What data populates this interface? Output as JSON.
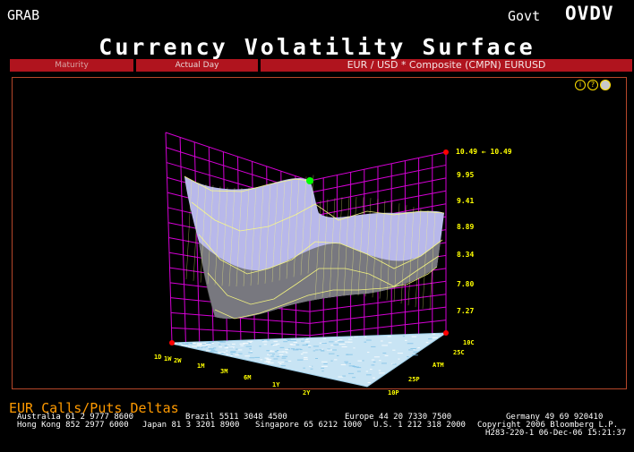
{
  "header": {
    "left_label": "GRAB",
    "market_label": "Govt",
    "function_code": "OVDV",
    "title": "Currency Volatility Surface"
  },
  "tabs": [
    {
      "label": "Maturity"
    },
    {
      "label": "Actual Day"
    },
    {
      "label": "EUR / USD  * Composite (CMPN) EURUSD"
    }
  ],
  "toolbar_icons": [
    "info-icon",
    "help-icon",
    "settings-icon"
  ],
  "chart_data": {
    "type": "surface",
    "z_axis": {
      "tick_labels": [
        "7.27",
        "7.80",
        "8.34",
        "8.89",
        "9.41",
        "9.95",
        "10.49"
      ],
      "max_marker_label": "10.49 ← 10.49"
    },
    "maturity_axis": {
      "tick_labels": [
        "1D",
        "1W",
        "2W",
        "1M",
        "3M",
        "6M",
        "1Y",
        "2Y"
      ]
    },
    "delta_axis": {
      "tick_labels": [
        "10P",
        "25P",
        "ATM",
        "25C",
        "10C"
      ]
    },
    "colors": {
      "grid": "#d400d4",
      "surface_light": "#b8b8ea",
      "surface_shade": "#6c6c6c",
      "mesh_lines": "#ffff80",
      "floor": "#c8e4f4",
      "axis_labels": "#ffff00",
      "marker_red": "#ff0000",
      "marker_green": "#00ff00"
    }
  },
  "footer": {
    "title": "EUR  Calls/Puts Deltas",
    "contacts_line1": [
      "Australia 61 2 9777 8600",
      "Brazil 5511 3048 4500",
      "Europe 44 20 7330 7500",
      "Germany 49 69 920410"
    ],
    "contacts_line2": [
      "Hong Kong 852 2977 6000",
      "Japan 81 3 3201 8900",
      "Singapore 65 6212 1000",
      "U.S. 1 212 318 2000",
      "Copyright 2006 Bloomberg L.P."
    ],
    "contacts_line3": "H283-220-1 06-Dec-06 15:21:37"
  }
}
